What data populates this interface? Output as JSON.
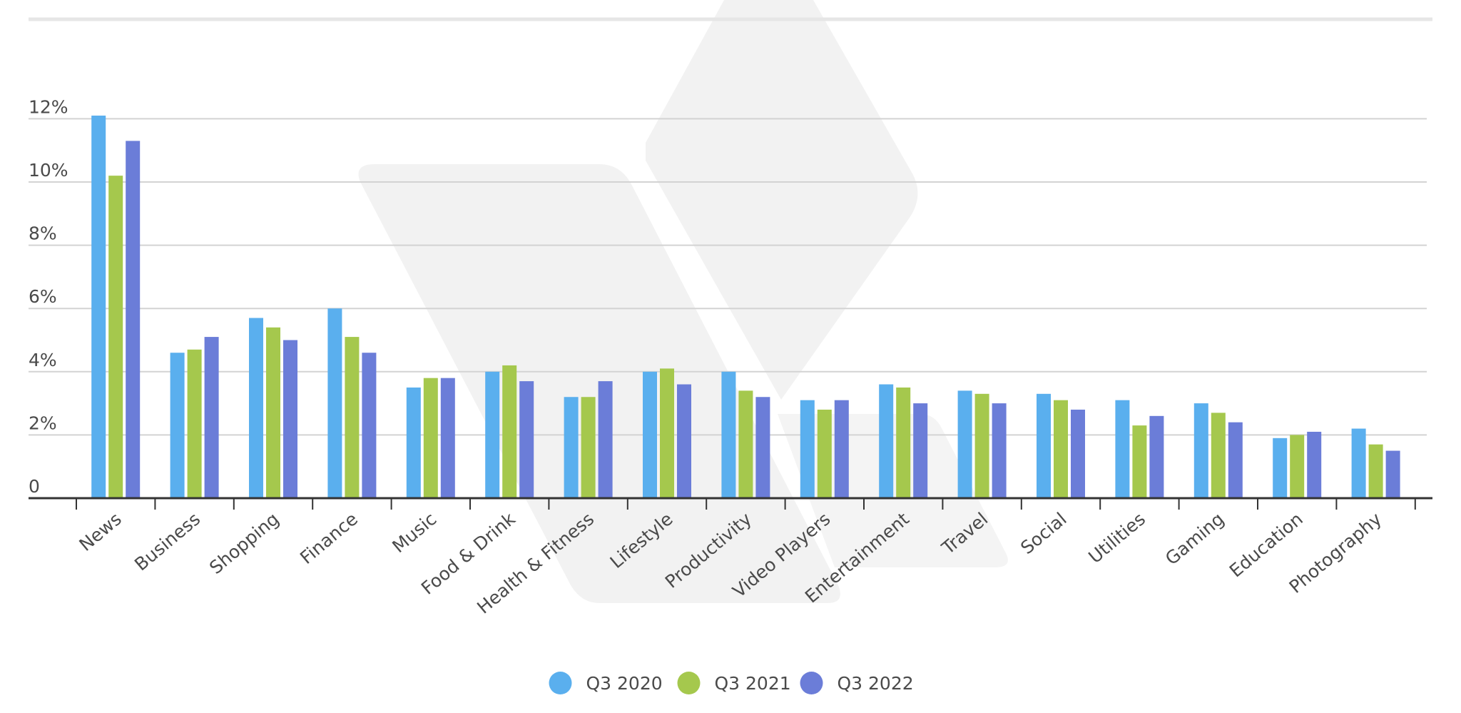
{
  "colors": {
    "series_0": "#5AAFEE",
    "series_1": "#A5C84D",
    "series_2": "#6B7DD8",
    "grid": "#d3d3d3",
    "axis": "#333333",
    "top_rule": "#e6e6e6",
    "watermark": "#f2f2f2"
  },
  "chart_data": {
    "type": "bar",
    "title": "",
    "xlabel": "",
    "ylabel": "",
    "ylim": [
      0,
      12
    ],
    "y_ticks": [
      0,
      2,
      4,
      6,
      8,
      10,
      12
    ],
    "y_tick_labels": [
      "0",
      "2%",
      "4%",
      "6%",
      "8%",
      "10%",
      "12%"
    ],
    "grid": true,
    "legend_position": "bottom-center",
    "categories": [
      "News",
      "Business",
      "Shopping",
      "Finance",
      "Music",
      "Food & Drink",
      "Health & Fitness",
      "Lifestyle",
      "Productivity",
      "Video Players",
      "Entertainment",
      "Travel",
      "Social",
      "Utilities",
      "Gaming",
      "Education",
      "Photography"
    ],
    "series": [
      {
        "name": "Q3 2020",
        "color": "#5AAFEE",
        "values": [
          12.1,
          4.6,
          5.7,
          6.0,
          3.5,
          4.0,
          3.2,
          4.0,
          4.0,
          3.1,
          3.6,
          3.4,
          3.3,
          3.1,
          3.0,
          1.9,
          2.2
        ]
      },
      {
        "name": "Q3 2021",
        "color": "#A5C84D",
        "values": [
          10.2,
          4.7,
          5.4,
          5.1,
          3.8,
          4.2,
          3.2,
          4.1,
          3.4,
          2.8,
          3.5,
          3.3,
          3.1,
          2.3,
          2.7,
          2.0,
          1.7
        ]
      },
      {
        "name": "Q3 2022",
        "color": "#6B7DD8",
        "values": [
          11.3,
          5.1,
          5.0,
          4.6,
          3.8,
          3.7,
          3.7,
          3.6,
          3.2,
          3.1,
          3.0,
          3.0,
          2.8,
          2.6,
          2.4,
          2.1,
          1.5
        ]
      }
    ]
  }
}
